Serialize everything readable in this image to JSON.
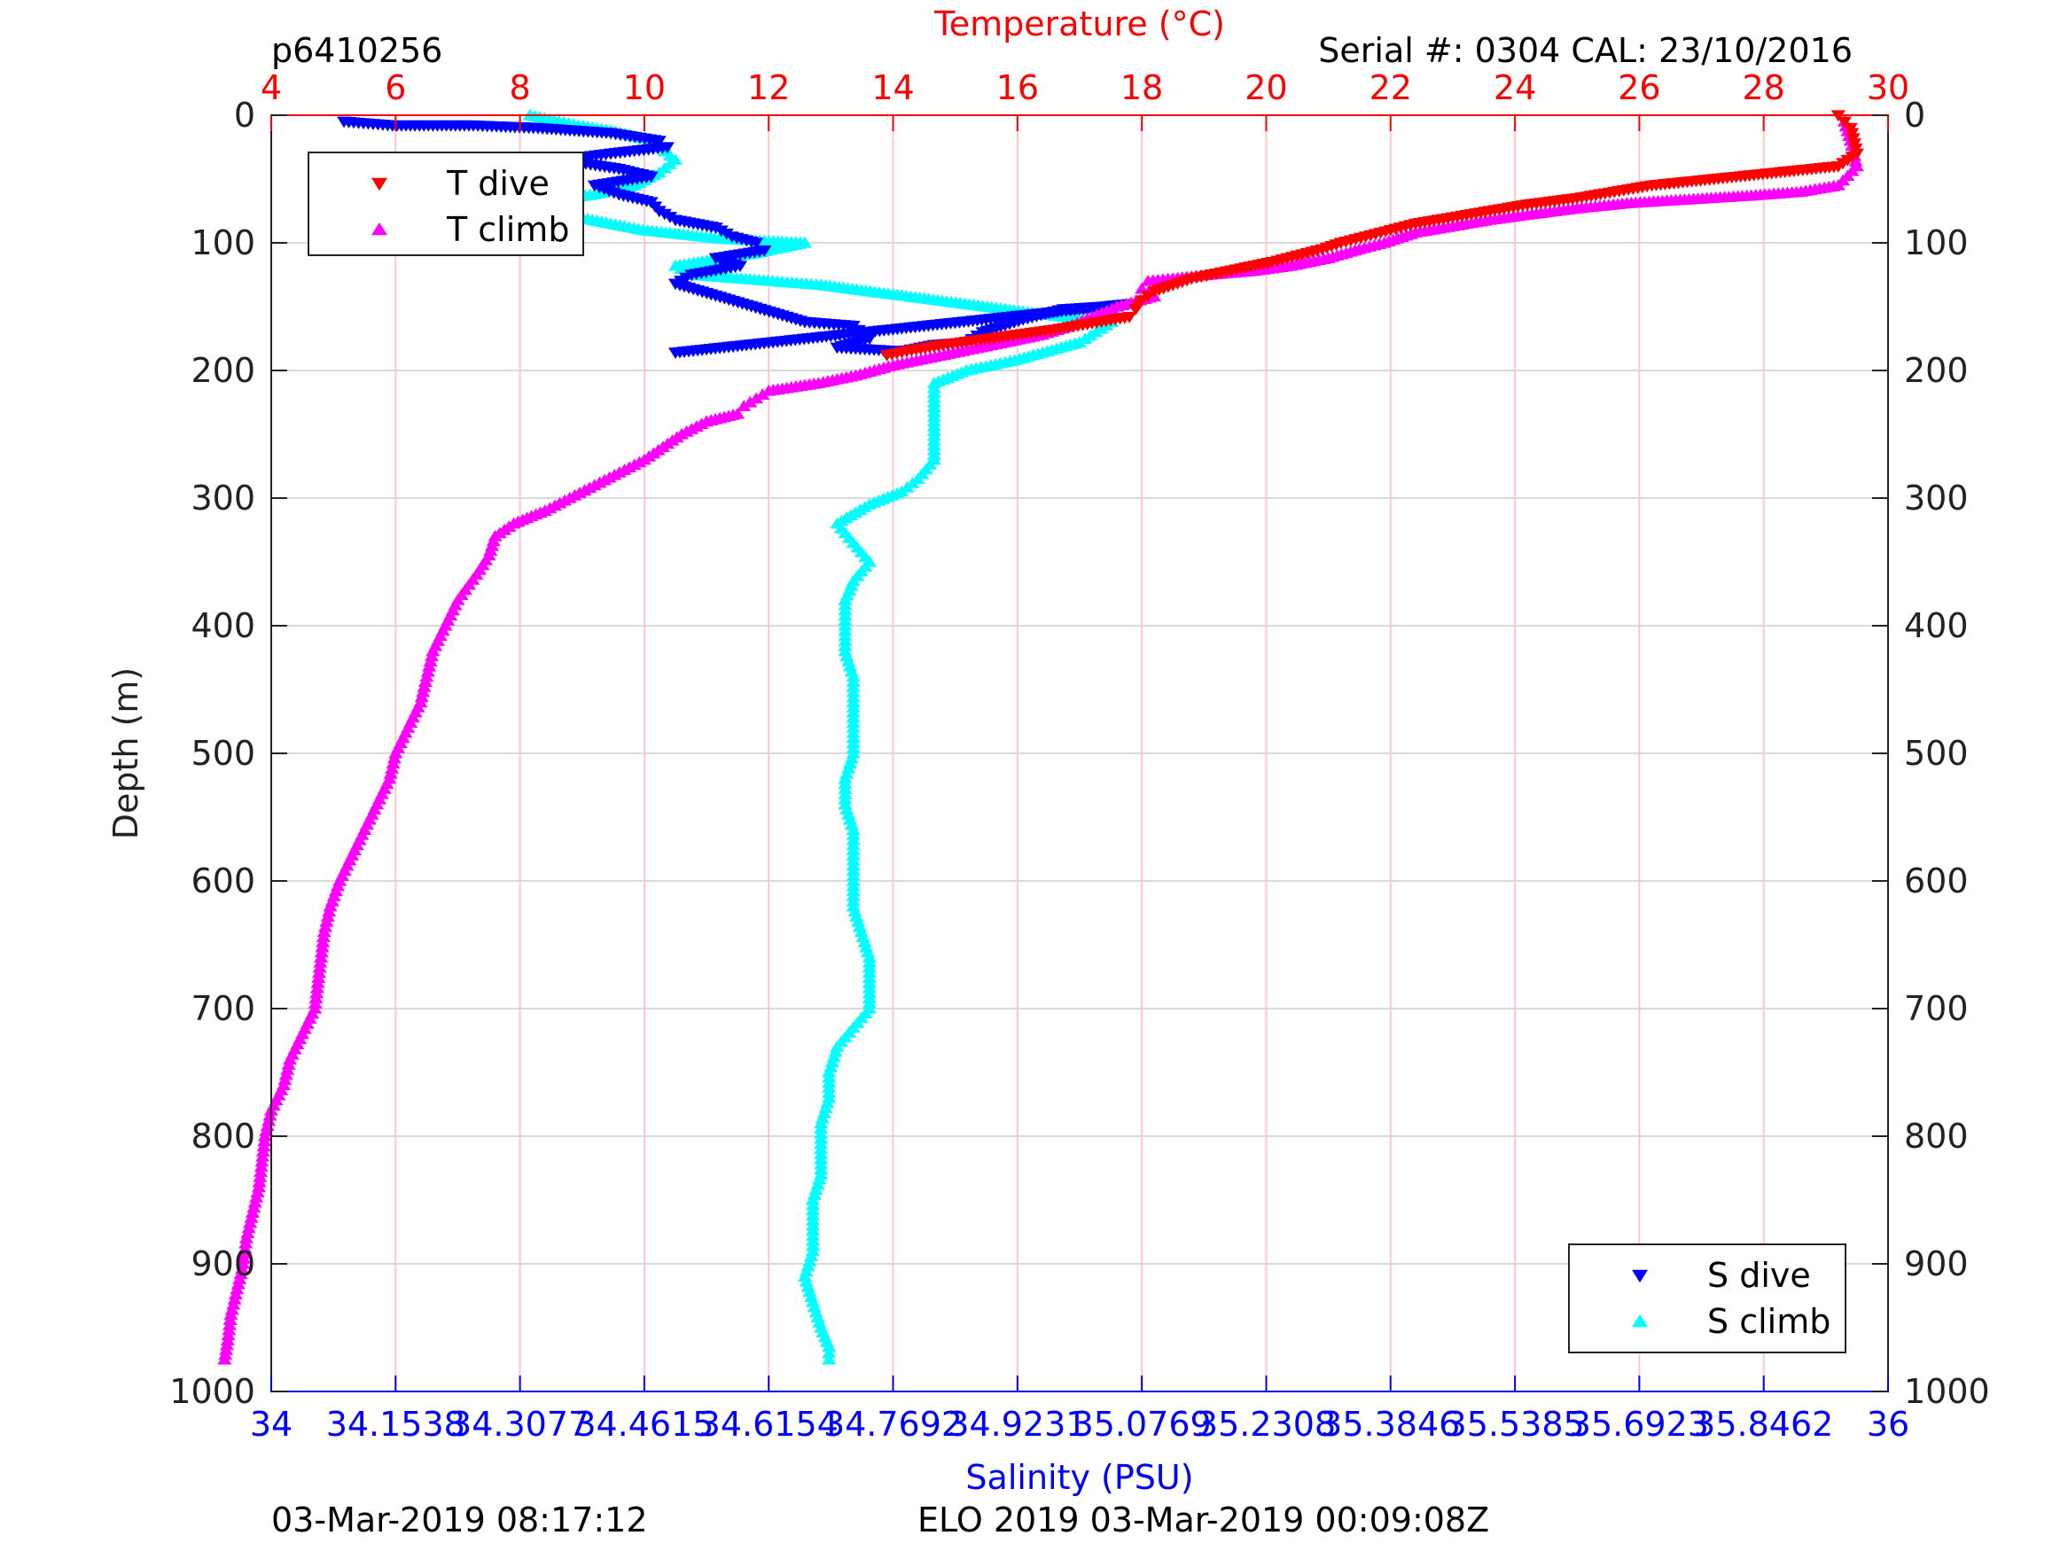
{
  "header": {
    "profile_id": "p6410256",
    "serial": "Serial #: 0304  CAL: 23/10/2016"
  },
  "footer": {
    "left": "03-Mar-2019 08:17:12",
    "center": "ELO 2019 03-Mar-2019 00:09:08Z"
  },
  "colors": {
    "t_dive": "#ff0000",
    "t_climb": "#ff00ff",
    "s_dive": "#0000ff",
    "s_climb": "#00ffff",
    "temp_axis": "#ff0000",
    "sal_axis": "#0000ff",
    "temp_grid": "#ffc8c8",
    "depth_grid": "#d9d9d9"
  },
  "chart_data": {
    "type": "scatter",
    "ylabel": "Depth (m)",
    "ylim": [
      0,
      1000
    ],
    "y_reversed": true,
    "y_ticks": [
      0,
      100,
      200,
      300,
      400,
      500,
      600,
      700,
      800,
      900,
      1000
    ],
    "temperature_axis": {
      "label": "Temperature (°C)",
      "position": "top",
      "range": [
        4,
        30
      ],
      "ticks": [
        "4",
        "6",
        "8",
        "10",
        "12",
        "14",
        "16",
        "18",
        "20",
        "22",
        "24",
        "26",
        "28",
        "30"
      ]
    },
    "salinity_axis": {
      "label": "Salinity (PSU)",
      "position": "bottom",
      "range": [
        34,
        36
      ],
      "ticks": [
        "34",
        "34.1538",
        "34.3077",
        "34.4615",
        "34.6154",
        "34.7692",
        "34.9231",
        "35.0769",
        "35.2308",
        "35.3846",
        "35.5385",
        "35.6923",
        "35.8462",
        "36"
      ]
    },
    "legend_top": {
      "placement": "top-left",
      "entries": [
        "T dive",
        "T climb"
      ]
    },
    "legend_bottom": {
      "placement": "bottom-right",
      "entries": [
        "S dive",
        "S climb"
      ]
    },
    "grid": true,
    "series": [
      {
        "name": "T dive",
        "axis": "temperature",
        "marker": "triangle-down",
        "points": [
          [
            29.2,
            0
          ],
          [
            29.4,
            10
          ],
          [
            29.5,
            30
          ],
          [
            29.2,
            40
          ],
          [
            28.2,
            45
          ],
          [
            27.2,
            50
          ],
          [
            26.2,
            55
          ],
          [
            25.6,
            60
          ],
          [
            25.0,
            65
          ],
          [
            24.2,
            70
          ],
          [
            23.6,
            75
          ],
          [
            23.0,
            80
          ],
          [
            22.4,
            85
          ],
          [
            22.0,
            90
          ],
          [
            21.6,
            95
          ],
          [
            21.2,
            100
          ],
          [
            20.9,
            105
          ],
          [
            20.5,
            110
          ],
          [
            20.1,
            115
          ],
          [
            19.6,
            120
          ],
          [
            19.2,
            124
          ],
          [
            18.8,
            128
          ],
          [
            18.5,
            133
          ],
          [
            18.2,
            138
          ],
          [
            18.0,
            145
          ],
          [
            17.9,
            152
          ],
          [
            17.8,
            158
          ],
          [
            17.2,
            163
          ],
          [
            16.6,
            168
          ],
          [
            16.0,
            172
          ],
          [
            15.4,
            176
          ],
          [
            14.8,
            180
          ],
          [
            14.3,
            184
          ],
          [
            13.9,
            188
          ]
        ]
      },
      {
        "name": "T climb",
        "axis": "temperature",
        "marker": "triangle-up",
        "points": [
          [
            29.3,
            5
          ],
          [
            29.4,
            20
          ],
          [
            29.5,
            40
          ],
          [
            29.2,
            55
          ],
          [
            28.6,
            60
          ],
          [
            27.8,
            63
          ],
          [
            26.8,
            66
          ],
          [
            25.8,
            69
          ],
          [
            25.0,
            73
          ],
          [
            24.2,
            78
          ],
          [
            23.6,
            82
          ],
          [
            23.0,
            87
          ],
          [
            22.4,
            92
          ],
          [
            21.9,
            100
          ],
          [
            21.5,
            105
          ],
          [
            21.0,
            112
          ],
          [
            20.4,
            118
          ],
          [
            19.8,
            122
          ],
          [
            19.1,
            125
          ],
          [
            18.5,
            128
          ],
          [
            18.1,
            130
          ],
          [
            18.0,
            136
          ],
          [
            18.2,
            142
          ],
          [
            17.6,
            150
          ],
          [
            17.2,
            158
          ],
          [
            16.8,
            166
          ],
          [
            16.4,
            172
          ],
          [
            15.8,
            178
          ],
          [
            15.2,
            184
          ],
          [
            14.6,
            190
          ],
          [
            14.0,
            196
          ],
          [
            13.4,
            204
          ],
          [
            12.8,
            210
          ],
          [
            12.0,
            216
          ],
          [
            11.8,
            222
          ],
          [
            11.6,
            228
          ],
          [
            11.5,
            234
          ],
          [
            11.0,
            240
          ],
          [
            10.6,
            250
          ],
          [
            10.3,
            260
          ],
          [
            10.0,
            270
          ],
          [
            9.6,
            280
          ],
          [
            9.2,
            290
          ],
          [
            8.8,
            300
          ],
          [
            8.4,
            310
          ],
          [
            7.9,
            320
          ],
          [
            7.6,
            330
          ],
          [
            7.5,
            345
          ],
          [
            7.3,
            360
          ],
          [
            7.0,
            380
          ],
          [
            6.8,
            400
          ],
          [
            6.6,
            420
          ],
          [
            6.5,
            440
          ],
          [
            6.4,
            460
          ],
          [
            6.2,
            480
          ],
          [
            6.0,
            500
          ],
          [
            5.9,
            520
          ],
          [
            5.7,
            540
          ],
          [
            5.5,
            560
          ],
          [
            5.3,
            580
          ],
          [
            5.1,
            600
          ],
          [
            4.95,
            620
          ],
          [
            4.85,
            640
          ],
          [
            4.8,
            660
          ],
          [
            4.75,
            680
          ],
          [
            4.7,
            700
          ],
          [
            4.5,
            720
          ],
          [
            4.3,
            740
          ],
          [
            4.2,
            760
          ],
          [
            4.0,
            780
          ],
          [
            3.9,
            800
          ],
          [
            3.85,
            820
          ],
          [
            3.8,
            840
          ],
          [
            3.7,
            860
          ],
          [
            3.6,
            880
          ],
          [
            3.55,
            900
          ],
          [
            3.45,
            920
          ],
          [
            3.35,
            940
          ],
          [
            3.3,
            960
          ],
          [
            3.25,
            975
          ]
        ]
      },
      {
        "name": "S dive",
        "axis": "salinity",
        "marker": "triangle-down",
        "points": [
          [
            34.09,
            5
          ],
          [
            34.15,
            8
          ],
          [
            34.25,
            8
          ],
          [
            34.33,
            10
          ],
          [
            34.42,
            14
          ],
          [
            34.48,
            20
          ],
          [
            34.49,
            25
          ],
          [
            34.42,
            30
          ],
          [
            34.36,
            35
          ],
          [
            34.43,
            42
          ],
          [
            34.47,
            48
          ],
          [
            34.4,
            55
          ],
          [
            34.43,
            62
          ],
          [
            34.47,
            68
          ],
          [
            34.48,
            75
          ],
          [
            34.5,
            82
          ],
          [
            34.55,
            88
          ],
          [
            34.57,
            95
          ],
          [
            34.6,
            100
          ],
          [
            34.61,
            106
          ],
          [
            34.55,
            112
          ],
          [
            34.58,
            118
          ],
          [
            34.52,
            125
          ],
          [
            34.5,
            132
          ],
          [
            34.66,
            162
          ],
          [
            34.72,
            165
          ],
          [
            34.74,
            175
          ],
          [
            34.7,
            182
          ],
          [
            34.78,
            185
          ],
          [
            34.82,
            180
          ],
          [
            34.86,
            178
          ],
          [
            34.88,
            170
          ],
          [
            34.93,
            160
          ],
          [
            34.98,
            152
          ],
          [
            35.03,
            150
          ],
          [
            35.06,
            148
          ],
          [
            34.5,
            186
          ]
        ]
      },
      {
        "name": "S climb",
        "axis": "salinity",
        "marker": "triangle-up",
        "points": [
          [
            34.32,
            0
          ],
          [
            34.38,
            8
          ],
          [
            34.42,
            12
          ],
          [
            34.46,
            18
          ],
          [
            34.48,
            25
          ],
          [
            34.5,
            35
          ],
          [
            34.48,
            45
          ],
          [
            34.45,
            55
          ],
          [
            34.4,
            62
          ],
          [
            34.33,
            68
          ],
          [
            34.3,
            75
          ],
          [
            34.38,
            80
          ],
          [
            34.46,
            90
          ],
          [
            34.56,
            97
          ],
          [
            34.66,
            100
          ],
          [
            34.6,
            108
          ],
          [
            34.5,
            118
          ],
          [
            34.52,
            125
          ],
          [
            34.62,
            130
          ],
          [
            34.68,
            133
          ],
          [
            34.98,
            158
          ],
          [
            35.04,
            162
          ],
          [
            35.02,
            170
          ],
          [
            35.0,
            178
          ],
          [
            34.96,
            185
          ],
          [
            34.92,
            192
          ],
          [
            34.86,
            200
          ],
          [
            34.82,
            210
          ],
          [
            34.82,
            225
          ],
          [
            34.82,
            240
          ],
          [
            34.82,
            255
          ],
          [
            34.82,
            270
          ],
          [
            34.8,
            285
          ],
          [
            34.78,
            295
          ],
          [
            34.74,
            305
          ],
          [
            34.7,
            320
          ],
          [
            34.72,
            335
          ],
          [
            34.74,
            350
          ],
          [
            34.72,
            365
          ],
          [
            34.71,
            380
          ],
          [
            34.71,
            400
          ],
          [
            34.71,
            420
          ],
          [
            34.72,
            440
          ],
          [
            34.72,
            460
          ],
          [
            34.72,
            480
          ],
          [
            34.72,
            500
          ],
          [
            34.71,
            520
          ],
          [
            34.71,
            540
          ],
          [
            34.72,
            560
          ],
          [
            34.72,
            580
          ],
          [
            34.72,
            600
          ],
          [
            34.72,
            620
          ],
          [
            34.73,
            640
          ],
          [
            34.74,
            660
          ],
          [
            34.74,
            680
          ],
          [
            34.74,
            700
          ],
          [
            34.72,
            715
          ],
          [
            34.7,
            730
          ],
          [
            34.69,
            750
          ],
          [
            34.69,
            770
          ],
          [
            34.68,
            790
          ],
          [
            34.68,
            810
          ],
          [
            34.68,
            830
          ],
          [
            34.67,
            850
          ],
          [
            34.67,
            870
          ],
          [
            34.67,
            890
          ],
          [
            34.66,
            910
          ],
          [
            34.67,
            930
          ],
          [
            34.68,
            950
          ],
          [
            34.69,
            965
          ],
          [
            34.69,
            975
          ]
        ]
      }
    ]
  }
}
